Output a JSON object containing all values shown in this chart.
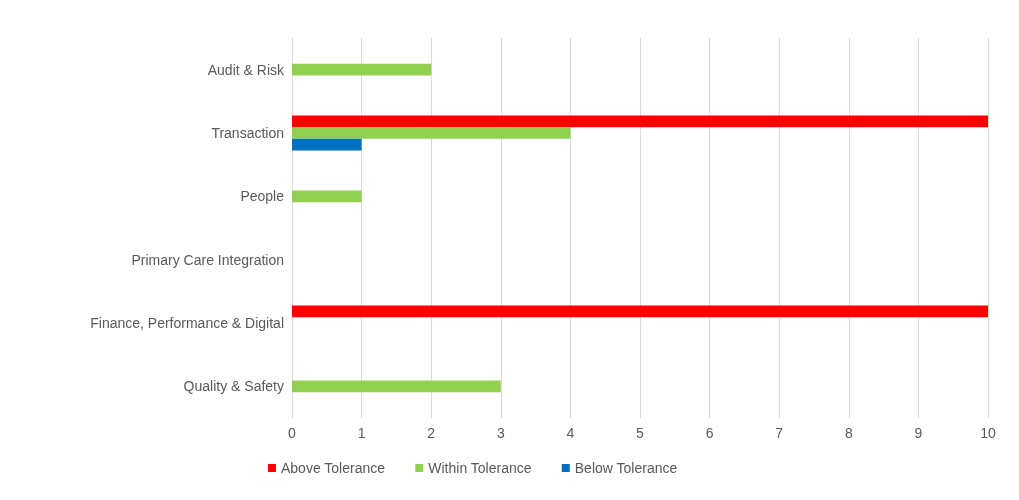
{
  "chart_data": {
    "type": "bar",
    "orientation": "horizontal",
    "categories": [
      "Audit & Risk",
      "Transaction",
      "People",
      "Primary Care Integration",
      "Finance, Performance & Digital",
      "Quality & Safety"
    ],
    "series": [
      {
        "name": "Above Tolerance",
        "color": "#ff0000",
        "values": [
          0,
          10,
          0,
          0,
          10,
          0
        ]
      },
      {
        "name": "Within Tolerance",
        "color": "#92d050",
        "values": [
          2,
          4,
          1,
          0,
          0,
          3
        ]
      },
      {
        "name": "Below Tolerance",
        "color": "#0070c0",
        "values": [
          0,
          1,
          0,
          0,
          0,
          0
        ]
      }
    ],
    "xlim": [
      0,
      10
    ],
    "xticks": [
      0,
      1,
      2,
      3,
      4,
      5,
      6,
      7,
      8,
      9,
      10
    ],
    "grid": "x",
    "legend": "bottom"
  }
}
